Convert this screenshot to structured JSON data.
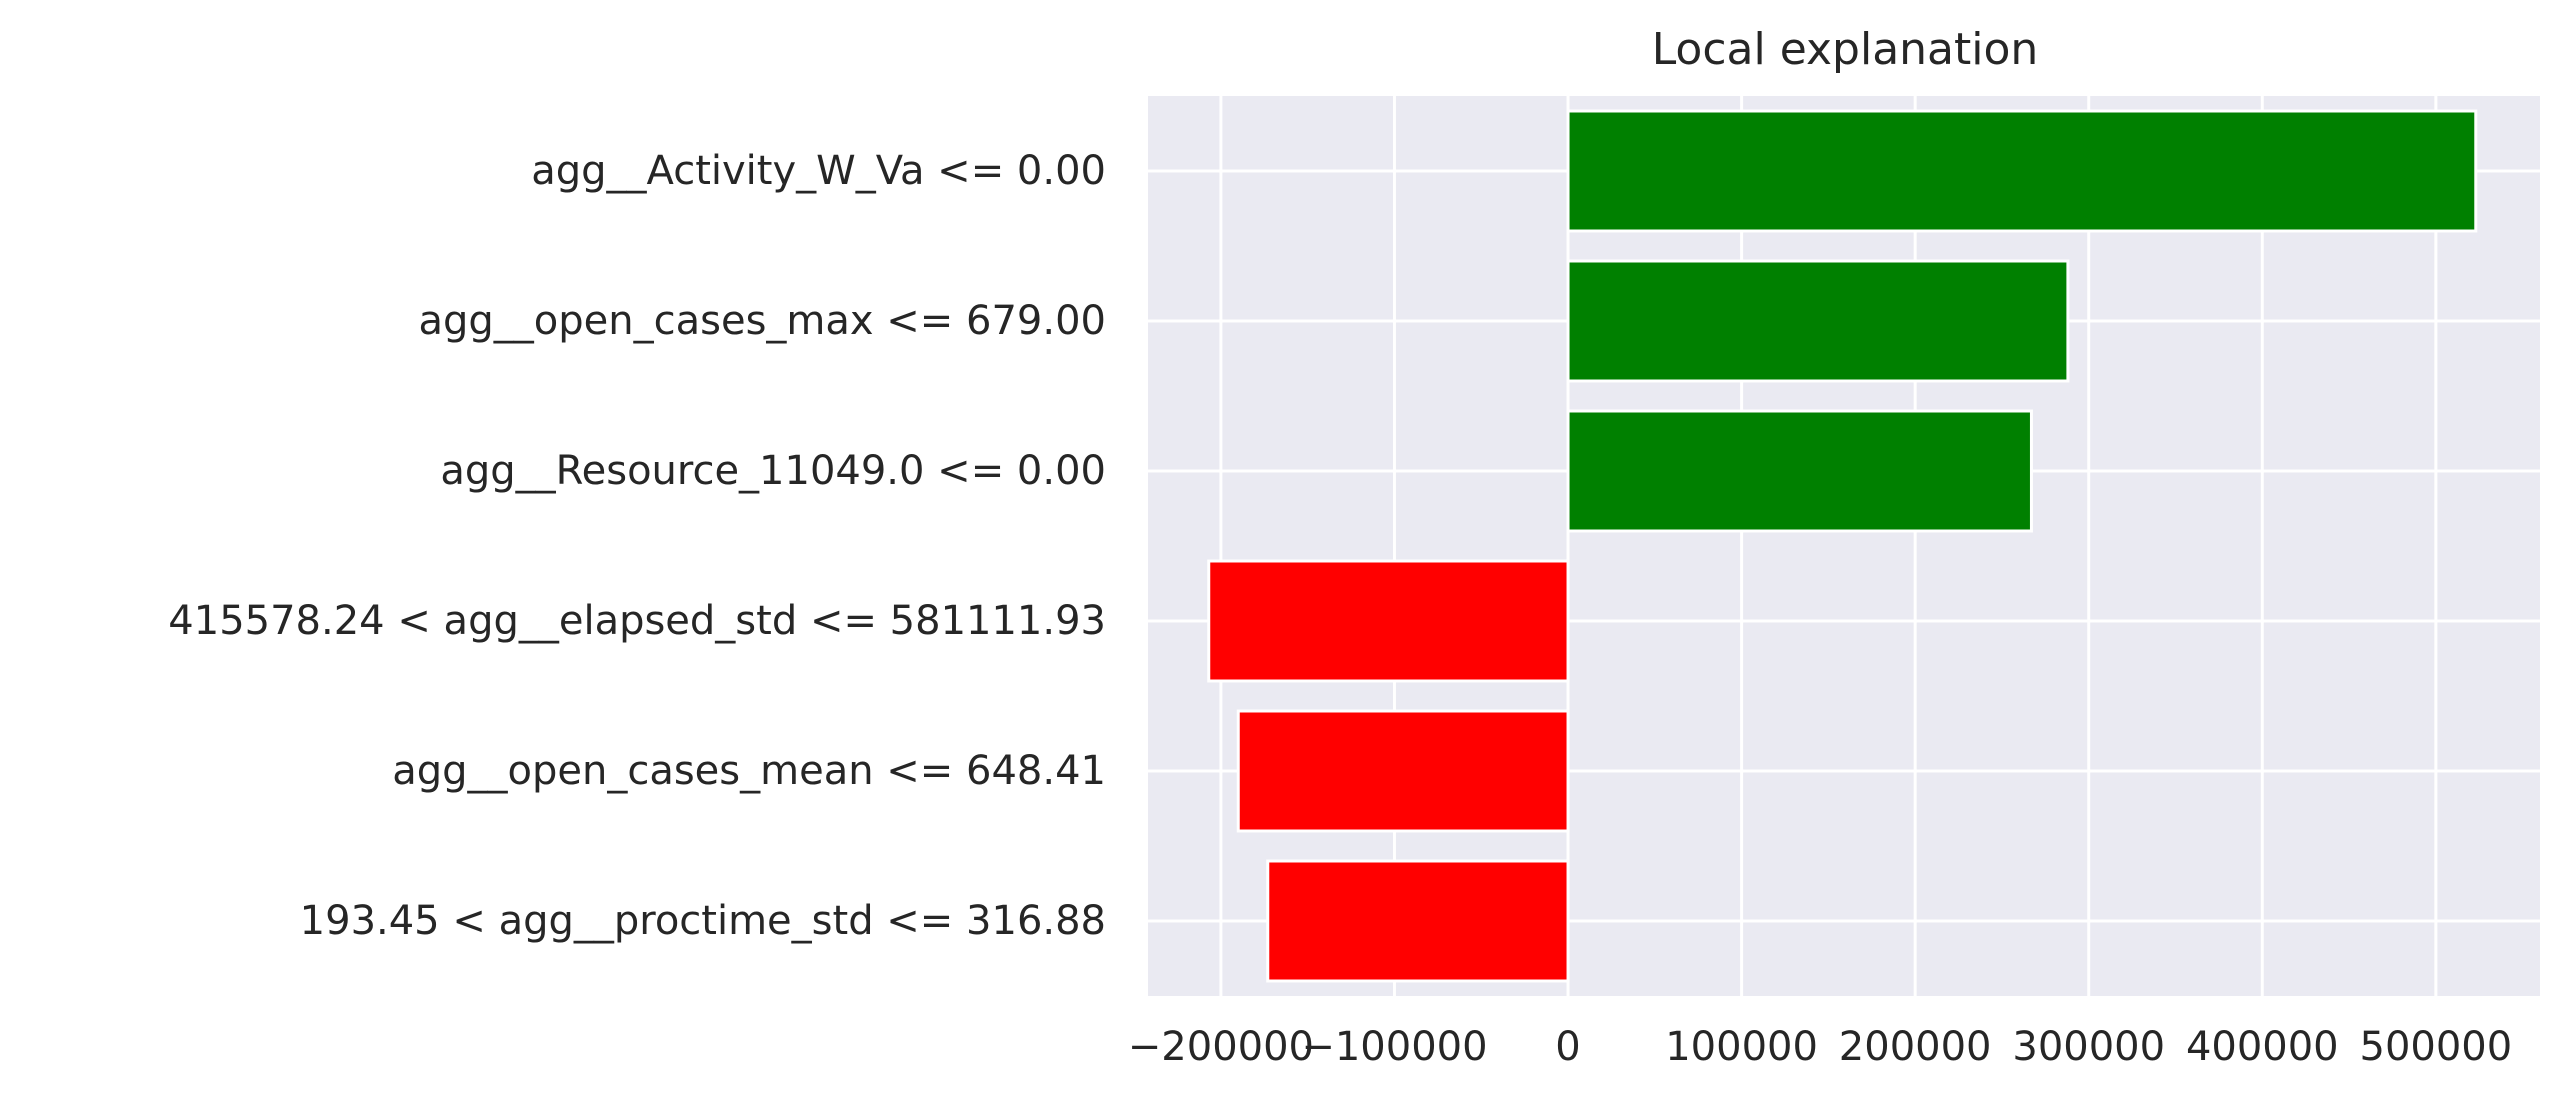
{
  "chart_data": {
    "type": "bar",
    "orientation": "horizontal",
    "title": "Local explanation",
    "xlabel": "",
    "ylabel": "",
    "categories": [
      "agg__Activity_W_Va <= 0.00",
      "agg__open_cases_max <= 679.00",
      "agg__Resource_11049.0 <= 0.00",
      "415578.24 < agg__elapsed_std <= 581111.93",
      "agg__open_cases_mean <= 648.41",
      "193.45 < agg__proctime_std <= 316.88"
    ],
    "values": [
      523000,
      288000,
      267000,
      -207000,
      -190000,
      -173000
    ],
    "bar_colors": [
      "#008000",
      "#008000",
      "#008000",
      "#ff0000",
      "#ff0000",
      "#ff0000"
    ],
    "xlim": [
      -242000,
      560000
    ],
    "xticks": [
      -200000,
      -100000,
      0,
      100000,
      200000,
      300000,
      400000,
      500000
    ],
    "xtick_labels": [
      "−200000",
      "−100000",
      "0",
      "100000",
      "200000",
      "300000",
      "400000",
      "500000"
    ],
    "grid": true,
    "background": "#eaeaf2",
    "grid_color": "#ffffff"
  }
}
